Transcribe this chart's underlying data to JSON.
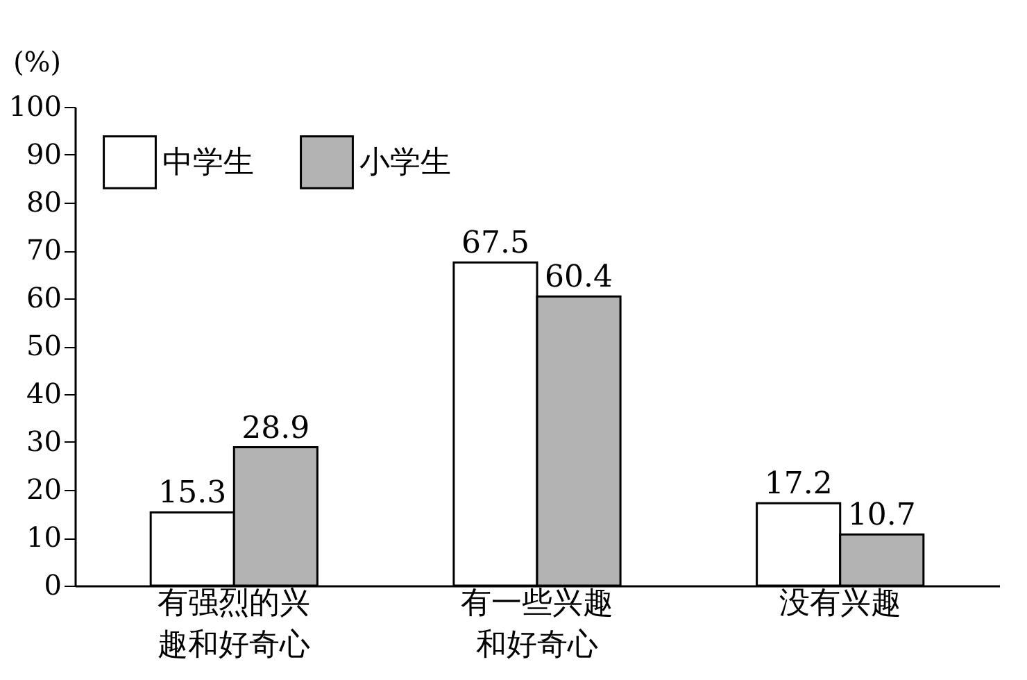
{
  "chart_data": {
    "type": "bar",
    "ylabel": "(%)",
    "categories": [
      "有强烈的兴趣和好奇心",
      "有一些兴趣和好奇心",
      "没有兴趣"
    ],
    "series": [
      {
        "name": "中学生",
        "color": "#ffffff",
        "values": [
          15.3,
          67.5,
          17.2
        ]
      },
      {
        "name": "小学生",
        "color": "#b3b3b3",
        "values": [
          28.9,
          60.4,
          10.7
        ]
      }
    ],
    "ylim": [
      0,
      100
    ],
    "yticks": [
      0,
      10,
      20,
      30,
      40,
      50,
      60,
      70,
      80,
      90,
      100
    ],
    "grid": false,
    "legend": "top left",
    "data_labels": true
  }
}
